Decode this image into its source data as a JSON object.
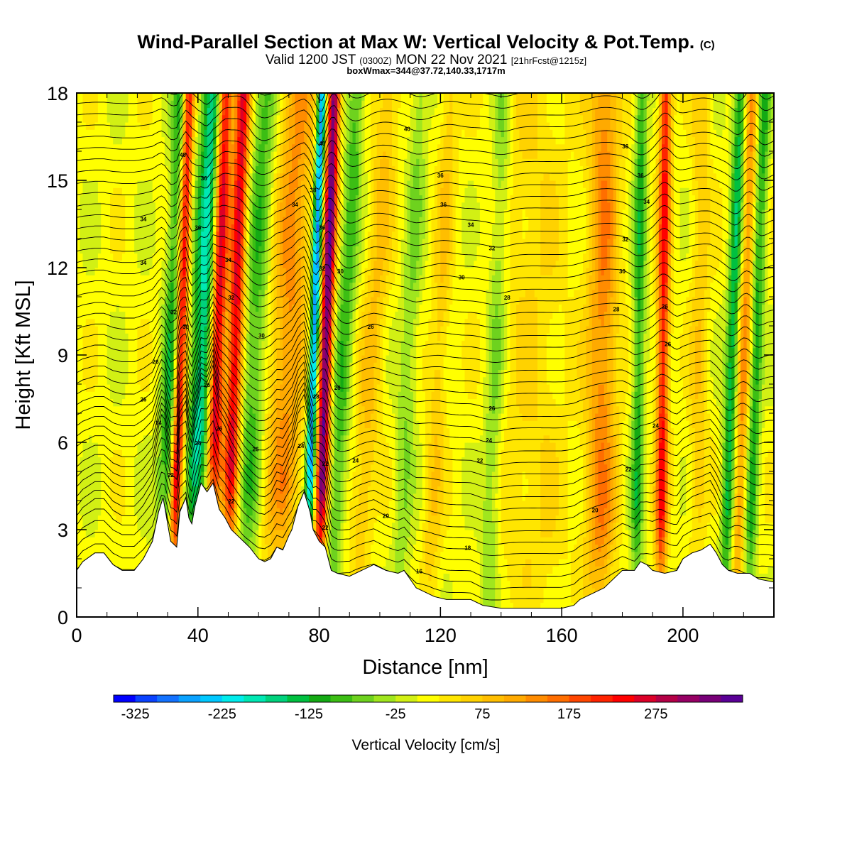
{
  "title": "Wind-Parallel Section at Max W: Vertical Velocity & Pot.Temp.",
  "title_mark": "(C)",
  "subtitle_main": "Valid 1200 JST",
  "subtitle_z": "(0300Z)",
  "subtitle_date": "MON 22 Nov 2021",
  "subtitle_fcst": "[21hrFcst@1215z]",
  "subtitle2": "boxWmax=344@37.72,140.33,1717m",
  "chart_data": {
    "type": "heatmap",
    "xlabel": "Distance [nm]",
    "ylabel": "Height [Kft MSL]",
    "xlim": [
      0,
      230
    ],
    "ylim": [
      0,
      18
    ],
    "x_ticks": [
      "0",
      "40",
      "80",
      "120",
      "160",
      "200"
    ],
    "y_ticks": [
      "0",
      "3",
      "6",
      "9",
      "12",
      "15",
      "18"
    ],
    "colorbar": {
      "title": "Vertical Velocity [cm/s]",
      "tick_labels": [
        "-325",
        "-225",
        "-125",
        "-25",
        "75",
        "175",
        "275"
      ],
      "colors": [
        "#0000ff",
        "#0a42ff",
        "#1372ff",
        "#0aa2ff",
        "#00c8ff",
        "#00ecec",
        "#00e8b4",
        "#00d27d",
        "#00c040",
        "#14aa14",
        "#3cbe14",
        "#6ed21e",
        "#a0e61e",
        "#d2f014",
        "#ffff00",
        "#ffe600",
        "#ffd200",
        "#ffbe00",
        "#ffaa00",
        "#ff8c00",
        "#ff6e00",
        "#ff4600",
        "#ff2300",
        "#ff0000",
        "#dc0028",
        "#b40046",
        "#960064",
        "#780078",
        "#5a0096"
      ]
    },
    "terrain": [
      [
        0,
        1.6
      ],
      [
        2,
        1.9
      ],
      [
        6,
        2.2
      ],
      [
        9,
        2.2
      ],
      [
        12,
        1.8
      ],
      [
        15,
        1.6
      ],
      [
        19,
        1.6
      ],
      [
        22,
        2.0
      ],
      [
        25,
        2.6
      ],
      [
        27,
        3.6
      ],
      [
        28.5,
        4.1
      ],
      [
        30,
        3.2
      ],
      [
        31,
        2.6
      ],
      [
        33,
        2.4
      ],
      [
        34,
        3.6
      ],
      [
        36,
        4.1
      ],
      [
        37,
        3.4
      ],
      [
        38,
        3.2
      ],
      [
        39,
        3.8
      ],
      [
        41,
        4.6
      ],
      [
        43,
        4.3
      ],
      [
        45,
        4.6
      ],
      [
        47,
        3.7
      ],
      [
        49,
        3.4
      ],
      [
        51,
        3.0
      ],
      [
        53,
        2.8
      ],
      [
        55,
        2.6
      ],
      [
        57,
        2.4
      ],
      [
        60,
        2.0
      ],
      [
        62,
        1.9
      ],
      [
        64,
        2.0
      ],
      [
        66,
        2.4
      ],
      [
        68,
        2.3
      ],
      [
        70,
        2.8
      ],
      [
        71,
        3.0
      ],
      [
        73,
        3.8
      ],
      [
        75,
        4.3
      ],
      [
        77,
        3.6
      ],
      [
        78,
        3.0
      ],
      [
        80,
        2.6
      ],
      [
        82,
        2.4
      ],
      [
        84,
        1.6
      ],
      [
        86,
        1.5
      ],
      [
        90,
        1.4
      ],
      [
        94,
        1.6
      ],
      [
        98,
        1.8
      ],
      [
        102,
        1.6
      ],
      [
        106,
        1.5
      ],
      [
        108,
        1.6
      ],
      [
        112,
        1.0
      ],
      [
        116,
        0.8
      ],
      [
        118,
        0.7
      ],
      [
        122,
        0.6
      ],
      [
        130,
        0.6
      ],
      [
        134,
        0.4
      ],
      [
        140,
        0.3
      ],
      [
        150,
        0.3
      ],
      [
        160,
        0.3
      ],
      [
        164,
        0.4
      ],
      [
        166,
        0.6
      ],
      [
        170,
        0.8
      ],
      [
        174,
        1.0
      ],
      [
        177,
        1.3
      ],
      [
        180,
        1.6
      ],
      [
        184,
        1.6
      ],
      [
        186,
        1.9
      ],
      [
        188,
        1.8
      ],
      [
        190,
        1.6
      ],
      [
        194,
        1.5
      ],
      [
        198,
        1.6
      ],
      [
        200,
        2.0
      ],
      [
        203,
        2.2
      ],
      [
        206,
        2.3
      ],
      [
        209,
        2.5
      ],
      [
        211,
        2.2
      ],
      [
        213,
        1.8
      ],
      [
        215,
        1.6
      ],
      [
        218,
        1.5
      ],
      [
        222,
        1.5
      ],
      [
        225,
        1.3
      ],
      [
        230,
        1.2
      ]
    ],
    "velocity_bands": [
      {
        "x": 30,
        "w": -150,
        "tilt": 0.4,
        "width": 3
      },
      {
        "x": 33,
        "w": 300,
        "tilt": 0.3,
        "width": 2
      },
      {
        "x": 40,
        "w": -200,
        "tilt": 0.4,
        "width": 4
      },
      {
        "x": 45,
        "w": 300,
        "tilt": 0.3,
        "width": 2.5
      },
      {
        "x": 51,
        "w": 250,
        "tilt": 0.3,
        "width": 2.5
      },
      {
        "x": 57,
        "w": -100,
        "tilt": 0.4,
        "width": 4
      },
      {
        "x": 68,
        "w": 120,
        "tilt": 0.4,
        "width": 6
      },
      {
        "x": 77,
        "w": -300,
        "tilt": 0.3,
        "width": 1.5
      },
      {
        "x": 81,
        "w": 344,
        "tilt": 0.3,
        "width": 2
      },
      {
        "x": 86,
        "w": -100,
        "tilt": 0.5,
        "width": 3
      },
      {
        "x": 95,
        "w": 70,
        "tilt": 0.6,
        "width": 4
      },
      {
        "x": 108,
        "w": -60,
        "tilt": 0.4,
        "width": 3
      },
      {
        "x": 118,
        "w": 60,
        "tilt": 0.4,
        "width": 3
      },
      {
        "x": 137,
        "w": -70,
        "tilt": 0.3,
        "width": 3
      },
      {
        "x": 150,
        "w": 40,
        "tilt": 0.0,
        "width": 12
      },
      {
        "x": 173,
        "w": 130,
        "tilt": 0.1,
        "width": 5
      },
      {
        "x": 185,
        "w": -120,
        "tilt": 0.1,
        "width": 2
      },
      {
        "x": 193,
        "w": 220,
        "tilt": 0.1,
        "width": 2
      },
      {
        "x": 205,
        "w": 60,
        "tilt": 0.1,
        "width": 3
      },
      {
        "x": 215,
        "w": -150,
        "tilt": 0.3,
        "width": 2
      },
      {
        "x": 219,
        "w": 120,
        "tilt": 0.3,
        "width": 2
      },
      {
        "x": 223,
        "w": -120,
        "tilt": 0.3,
        "width": 2
      }
    ],
    "isentrope_labels": [
      {
        "x": 81,
        "y": 16.2,
        "text": "40"
      },
      {
        "x": 109,
        "y": 16.7,
        "text": "40"
      },
      {
        "x": 181,
        "y": 16.1,
        "text": "36"
      },
      {
        "x": 35,
        "y": 15.8,
        "text": "40"
      },
      {
        "x": 120,
        "y": 15.1,
        "text": "36"
      },
      {
        "x": 186,
        "y": 15.1,
        "text": "36"
      },
      {
        "x": 22,
        "y": 13.6,
        "text": "34"
      },
      {
        "x": 42,
        "y": 15.0,
        "text": "36"
      },
      {
        "x": 40,
        "y": 13.3,
        "text": "36"
      },
      {
        "x": 72,
        "y": 14.1,
        "text": "34"
      },
      {
        "x": 121,
        "y": 14.1,
        "text": "36"
      },
      {
        "x": 78,
        "y": 14.6,
        "text": "38"
      },
      {
        "x": 81,
        "y": 13.3,
        "text": "36"
      },
      {
        "x": 130,
        "y": 13.4,
        "text": "34"
      },
      {
        "x": 188,
        "y": 14.2,
        "text": "34"
      },
      {
        "x": 137,
        "y": 12.6,
        "text": "32"
      },
      {
        "x": 181,
        "y": 12.9,
        "text": "32"
      },
      {
        "x": 22,
        "y": 12.1,
        "text": "34"
      },
      {
        "x": 50,
        "y": 12.2,
        "text": "34"
      },
      {
        "x": 81,
        "y": 11.9,
        "text": "32"
      },
      {
        "x": 87,
        "y": 11.8,
        "text": "30"
      },
      {
        "x": 127,
        "y": 11.6,
        "text": "30"
      },
      {
        "x": 180,
        "y": 11.8,
        "text": "30"
      },
      {
        "x": 51,
        "y": 10.9,
        "text": "32"
      },
      {
        "x": 32,
        "y": 10.4,
        "text": "32"
      },
      {
        "x": 142,
        "y": 10.9,
        "text": "28"
      },
      {
        "x": 178,
        "y": 10.5,
        "text": "28"
      },
      {
        "x": 194,
        "y": 10.6,
        "text": "26"
      },
      {
        "x": 36,
        "y": 9.9,
        "text": "30"
      },
      {
        "x": 61,
        "y": 9.6,
        "text": "30"
      },
      {
        "x": 97,
        "y": 9.9,
        "text": "26"
      },
      {
        "x": 195,
        "y": 9.3,
        "text": "26"
      },
      {
        "x": 26,
        "y": 8.7,
        "text": "26"
      },
      {
        "x": 43,
        "y": 7.9,
        "text": "26"
      },
      {
        "x": 79,
        "y": 7.5,
        "text": "28"
      },
      {
        "x": 86,
        "y": 7.8,
        "text": "26"
      },
      {
        "x": 22,
        "y": 7.4,
        "text": "26"
      },
      {
        "x": 137,
        "y": 7.1,
        "text": "26"
      },
      {
        "x": 27,
        "y": 6.6,
        "text": "24"
      },
      {
        "x": 47,
        "y": 6.4,
        "text": "26"
      },
      {
        "x": 191,
        "y": 6.5,
        "text": "24"
      },
      {
        "x": 40,
        "y": 5.9,
        "text": "24"
      },
      {
        "x": 136,
        "y": 6.0,
        "text": "24"
      },
      {
        "x": 59,
        "y": 5.7,
        "text": "26"
      },
      {
        "x": 74,
        "y": 5.8,
        "text": "24"
      },
      {
        "x": 82,
        "y": 5.2,
        "text": "22"
      },
      {
        "x": 92,
        "y": 5.3,
        "text": "24"
      },
      {
        "x": 133,
        "y": 5.3,
        "text": "22"
      },
      {
        "x": 182,
        "y": 5.0,
        "text": "22"
      },
      {
        "x": 31,
        "y": 4.8,
        "text": "22"
      },
      {
        "x": 51,
        "y": 3.9,
        "text": "22"
      },
      {
        "x": 171,
        "y": 3.6,
        "text": "20"
      },
      {
        "x": 102,
        "y": 3.4,
        "text": "20"
      },
      {
        "x": 82,
        "y": 3.0,
        "text": "22"
      },
      {
        "x": 129,
        "y": 2.3,
        "text": "18"
      },
      {
        "x": 113,
        "y": 1.5,
        "text": "16"
      }
    ]
  }
}
